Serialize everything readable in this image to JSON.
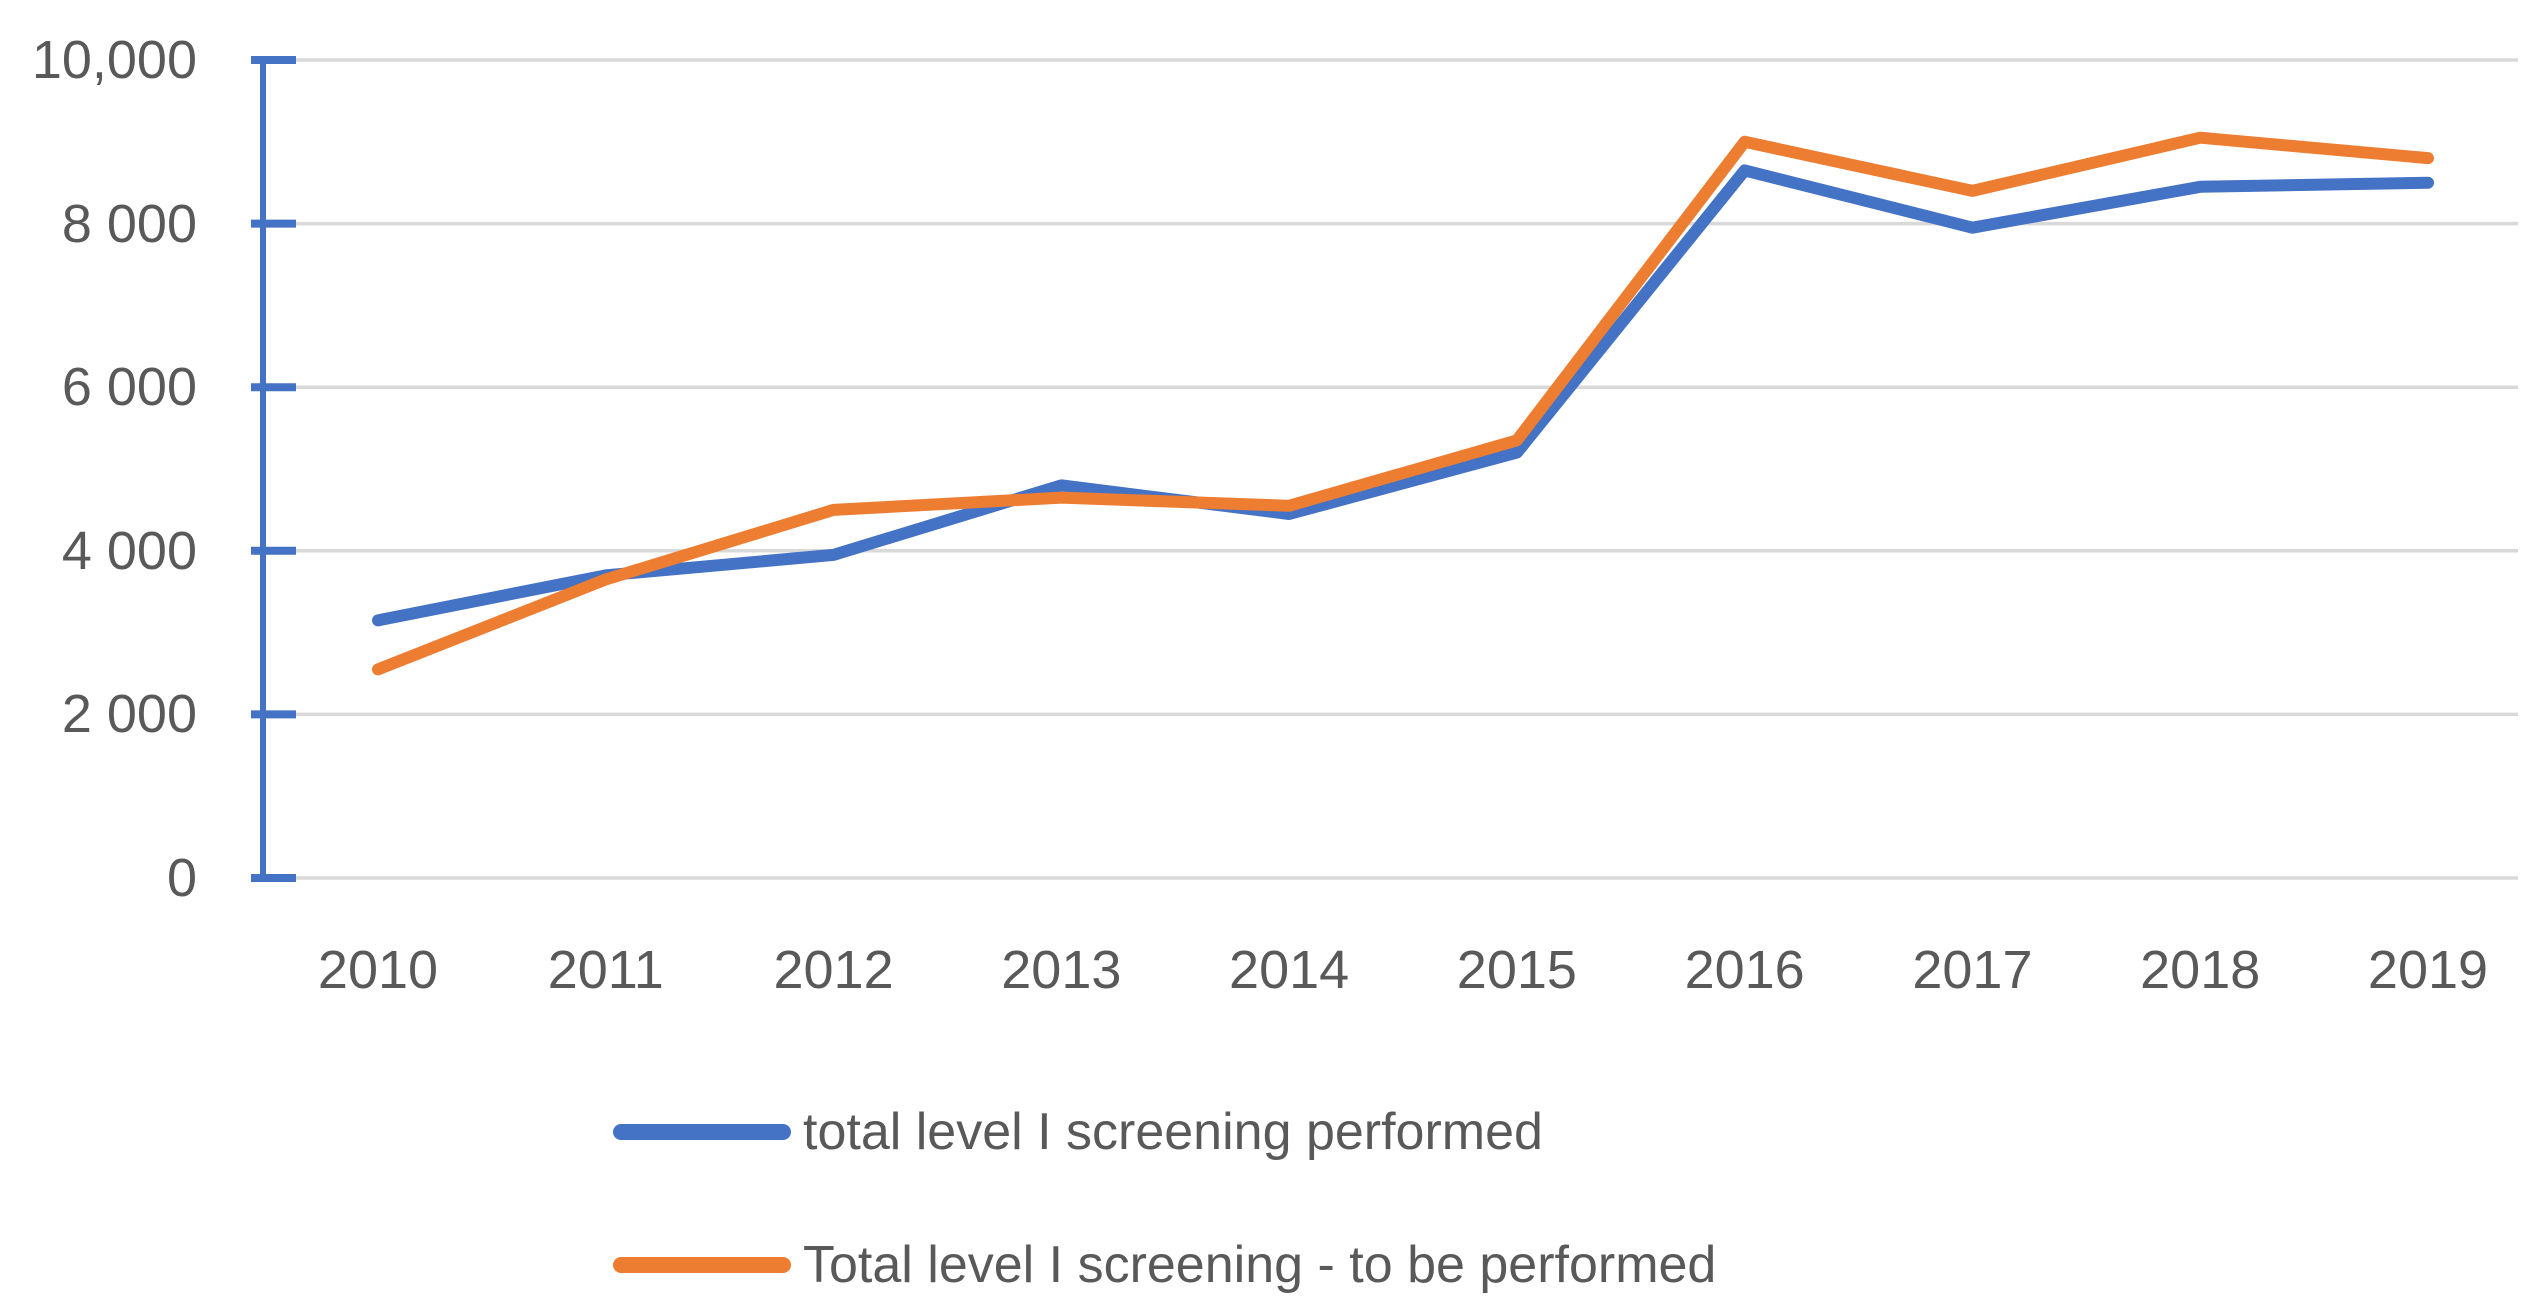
{
  "chart_data": {
    "type": "line",
    "title": "",
    "xlabel": "",
    "ylabel": "",
    "categories": [
      "2010",
      "2011",
      "2012",
      "2013",
      "2014",
      "2015",
      "2016",
      "2017",
      "2018",
      "2019"
    ],
    "series": [
      {
        "name": "total level I screening performed",
        "color": "#4472C4",
        "values": [
          3150,
          3700,
          3950,
          4800,
          4450,
          5200,
          8650,
          7950,
          8450,
          8500
        ]
      },
      {
        "name": "Total level I screening - to be performed",
        "color": "#ED7D31",
        "values": [
          2550,
          3650,
          4500,
          4650,
          4550,
          5350,
          9000,
          8400,
          9050,
          8800
        ]
      }
    ],
    "ylim": [
      0,
      10000
    ],
    "ytick_values": [
      0,
      2000,
      4000,
      6000,
      8000,
      10000
    ],
    "ytick_labels": [
      "0",
      "2 000",
      "4 000",
      "6 000",
      "8 000",
      "10,000"
    ],
    "grid": "horizontal",
    "gridline_color": "#D9D9D9",
    "axis_color": "#4472C4",
    "label_color": "#595959",
    "legend_position": "bottom-left"
  }
}
